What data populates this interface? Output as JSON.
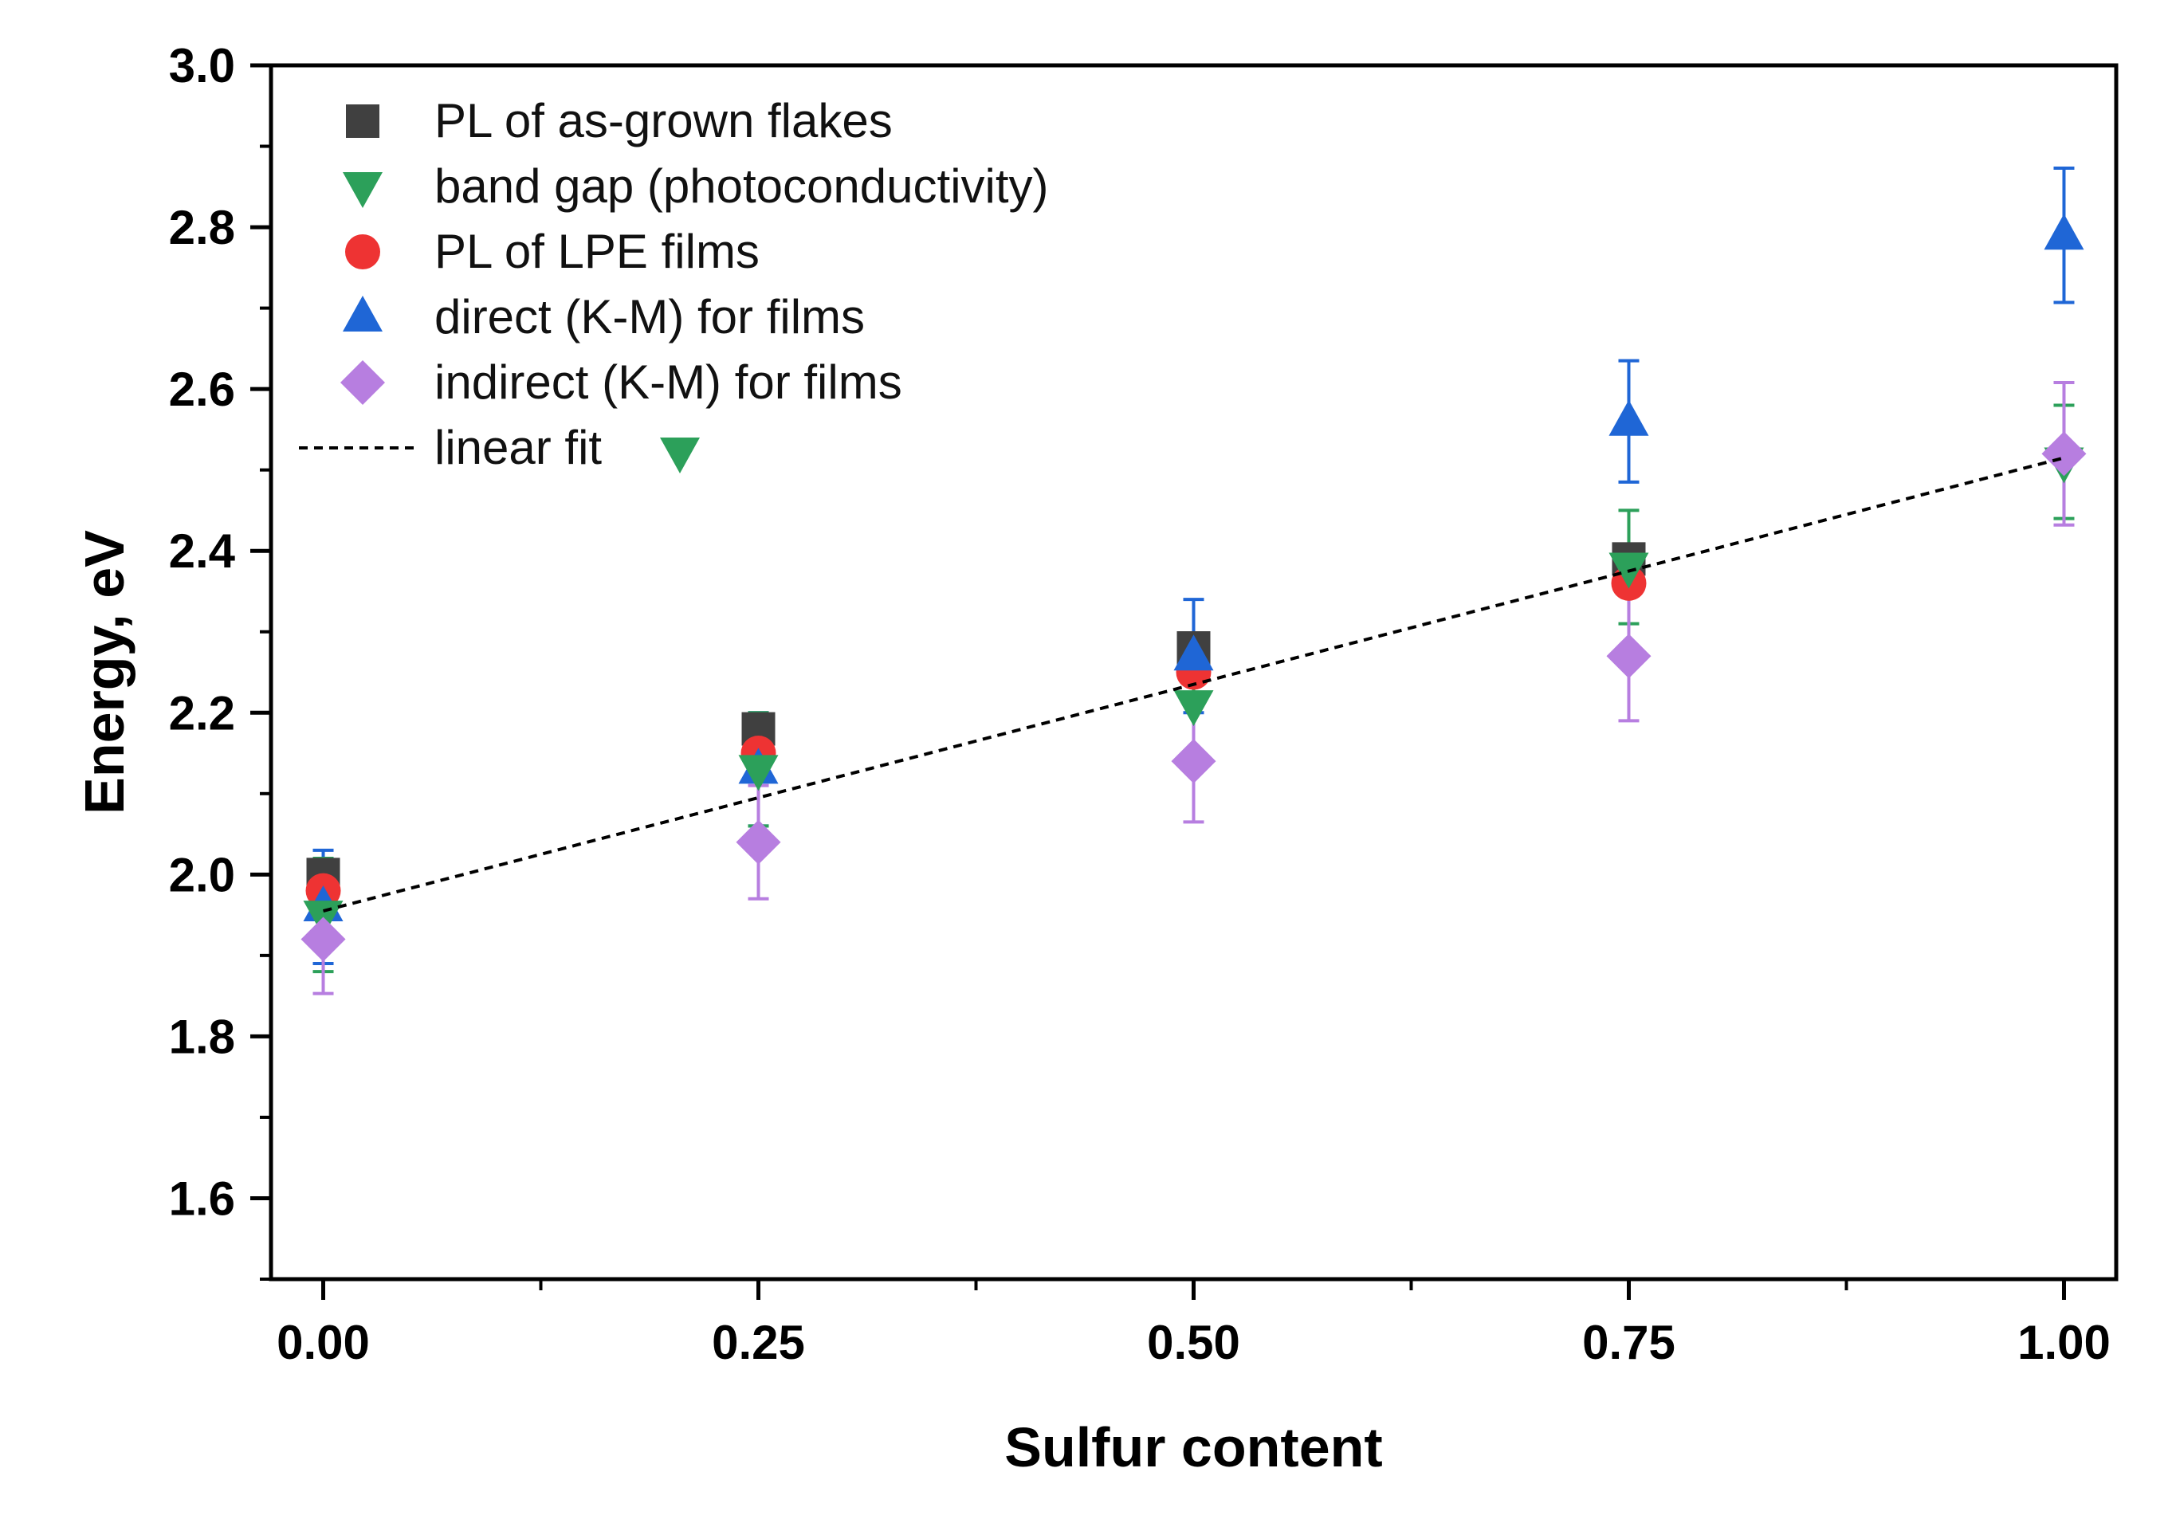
{
  "chart_data": {
    "type": "scatter",
    "title": "",
    "xlabel": "Sulfur content",
    "ylabel": "Energy, eV",
    "xlim": [
      -0.03,
      1.03
    ],
    "ylim": [
      1.5,
      3.0
    ],
    "xticks": [
      0.0,
      0.25,
      0.5,
      0.75,
      1.0
    ],
    "xtick_labels": [
      "0.00",
      "0.25",
      "0.50",
      "0.75",
      "1.00"
    ],
    "yticks": [
      1.6,
      1.8,
      2.0,
      2.2,
      2.4,
      2.6,
      2.8,
      3.0
    ],
    "ytick_labels": [
      "1.6",
      "1.8",
      "2.0",
      "2.2",
      "2.4",
      "2.6",
      "2.8",
      "3.0"
    ],
    "legend_position": "top-left",
    "grid": false,
    "series": [
      {
        "name": "PL of as-grown flakes",
        "marker": "square",
        "color": "#404040",
        "points": [
          {
            "x": 0.0,
            "y": 2.0
          },
          {
            "x": 0.25,
            "y": 2.18
          },
          {
            "x": 0.5,
            "y": 2.28
          },
          {
            "x": 0.75,
            "y": 2.39
          }
        ]
      },
      {
        "name": "band gap (photoconductivity)",
        "marker": "triangle-down",
        "color": "#2ca05a",
        "points": [
          {
            "x": 0.0,
            "y": 1.95,
            "err": 0.07
          },
          {
            "x": 0.25,
            "y": 2.13,
            "err": 0.07
          },
          {
            "x": 0.5,
            "y": 2.21,
            "err": 0.07
          },
          {
            "x": 0.75,
            "y": 2.38,
            "err": 0.07
          },
          {
            "x": 1.0,
            "y": 2.51,
            "err": 0.07
          }
        ]
      },
      {
        "name": "PL of LPE films",
        "marker": "circle",
        "color": "#ee3333",
        "points": [
          {
            "x": 0.0,
            "y": 1.98
          },
          {
            "x": 0.25,
            "y": 2.15
          },
          {
            "x": 0.5,
            "y": 2.25
          },
          {
            "x": 0.75,
            "y": 2.36
          }
        ]
      },
      {
        "name": "direct (K-M) for films",
        "marker": "triangle-up",
        "color": "#1f66d6",
        "points": [
          {
            "x": 0.0,
            "y": 1.96,
            "err": 0.07
          },
          {
            "x": 0.25,
            "y": 2.13,
            "err": 0.07
          },
          {
            "x": 0.5,
            "y": 2.27,
            "err": 0.07
          },
          {
            "x": 0.75,
            "y": 2.56,
            "err": 0.075
          },
          {
            "x": 1.0,
            "y": 2.79,
            "err": 0.083
          }
        ]
      },
      {
        "name": "indirect (K-M) for films",
        "marker": "diamond",
        "color": "#b77ee0",
        "points": [
          {
            "x": 0.0,
            "y": 1.92,
            "err": 0.067
          },
          {
            "x": 0.25,
            "y": 2.04,
            "err": 0.07
          },
          {
            "x": 0.5,
            "y": 2.14,
            "err": 0.075
          },
          {
            "x": 0.75,
            "y": 2.27,
            "err": 0.08
          },
          {
            "x": 1.0,
            "y": 2.52,
            "err": 0.088
          }
        ]
      }
    ],
    "fit": {
      "name": "linear fit",
      "style": "dashed",
      "color": "#000000",
      "of_series": "band gap (photoconductivity)",
      "x": [
        0.0,
        1.0
      ],
      "y": [
        1.955,
        2.515
      ]
    }
  }
}
